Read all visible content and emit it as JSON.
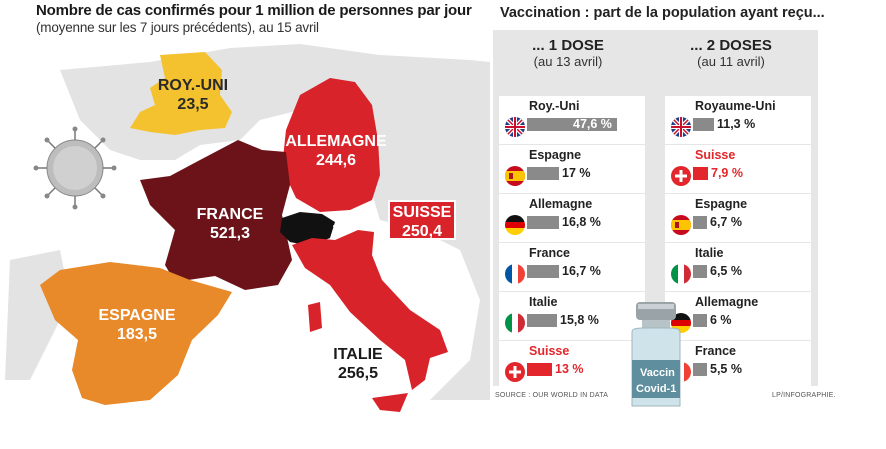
{
  "map": {
    "title": "Nombre de cas confirmés pour 1 million de personnes par jour",
    "subtitle": "(moyenne sur les 7 jours précédents), au 15 avril",
    "regions": [
      {
        "name": "ROY.-UNI",
        "value": "23,5",
        "color": "#f4c22e"
      },
      {
        "name": "ALLEMAGNE",
        "value": "244,6",
        "color": "#d8232a"
      },
      {
        "name": "FRANCE",
        "value": "521,3",
        "color": "#6b1318"
      },
      {
        "name": "SUISSE",
        "value": "250,4",
        "color": "#d8232a"
      },
      {
        "name": "ESPAGNE",
        "value": "183,5",
        "color": "#e8892a"
      },
      {
        "name": "ITALIE",
        "value": "256,5",
        "color": "#d8232a"
      }
    ]
  },
  "vaccination": {
    "title": "Vaccination : part de la population ayant reçu...",
    "col1": {
      "heading": "... 1 DOSE",
      "date": "(au 13 avril)"
    },
    "col2": {
      "heading": "... 2 DOSES",
      "date": "(au 11 avril)"
    },
    "highlight_color": "#e2262b",
    "vial_text": [
      "Vaccin",
      "Covid-1"
    ],
    "source": "SOURCE : OUR WORLD IN DATA",
    "credit": "LP/INFOGRAPHIE."
  },
  "chart_data": [
    {
      "type": "bar",
      "title": "... 1 DOSE",
      "subtitle": "(au 13 avril)",
      "unit": "%",
      "categories": [
        "Roy.-Uni",
        "Espagne",
        "Allemagne",
        "France",
        "Italie",
        "Suisse"
      ],
      "values": [
        47.6,
        17,
        16.8,
        16.7,
        15.8,
        13
      ],
      "labels": [
        "47,6 %",
        "17 %",
        "16,8 %",
        "16,7 %",
        "15,8 %",
        "13 %"
      ],
      "flags": [
        "uk",
        "spain",
        "germany",
        "france",
        "italy",
        "switzerland"
      ],
      "xlim": [
        0,
        47.6
      ]
    },
    {
      "type": "bar",
      "title": "... 2 DOSES",
      "subtitle": "(au 11 avril)",
      "unit": "%",
      "categories": [
        "Royaume-Uni",
        "Suisse",
        "Espagne",
        "Italie",
        "Allemagne",
        "France"
      ],
      "values": [
        11.3,
        7.9,
        6.7,
        6.5,
        6,
        5.5
      ],
      "labels": [
        "11,3 %",
        "7,9 %",
        "6,7 %",
        "6,5 %",
        "6 %",
        "5,5 %"
      ],
      "flags": [
        "uk",
        "switzerland",
        "spain",
        "italy",
        "germany",
        "france"
      ],
      "xlim": [
        0,
        47.6
      ]
    }
  ]
}
